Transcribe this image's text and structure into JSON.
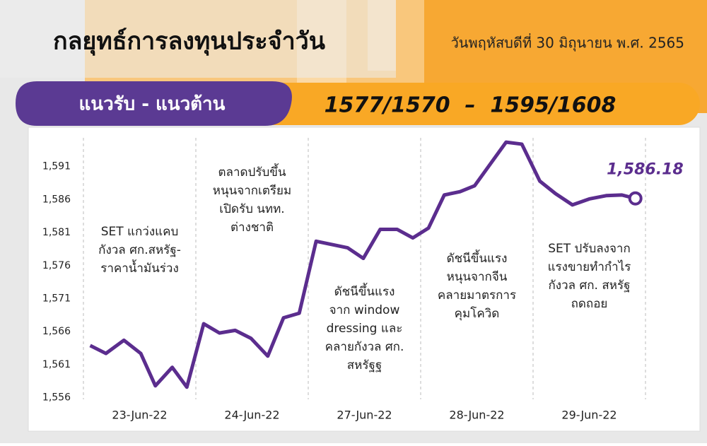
{
  "header": {
    "title": "กลยุทธ์การลงทุนประจำวัน",
    "date": "วันพฤหัสบดีที่ 30 มิถุนายน พ.ศ. 2565"
  },
  "banner": {
    "label": "แนวรับ - แนวต้าน",
    "levels": "1577/1570  –  1595/1608"
  },
  "chart_data": {
    "type": "line",
    "xlim": [
      0,
      5
    ],
    "xticks": [
      {
        "value": 0.5,
        "label": "23-Jun-22"
      },
      {
        "value": 1.5,
        "label": "24-Jun-22"
      },
      {
        "value": 2.5,
        "label": "27-Jun-22"
      },
      {
        "value": 3.5,
        "label": "28-Jun-22"
      },
      {
        "value": 4.5,
        "label": "29-Jun-22"
      }
    ],
    "ylim": [
      1555,
      1596
    ],
    "yticks": [
      {
        "value": 1556,
        "label": "1,556"
      },
      {
        "value": 1561,
        "label": "1,561"
      },
      {
        "value": 1566,
        "label": "1,566"
      },
      {
        "value": 1571,
        "label": "1,571"
      },
      {
        "value": 1576,
        "label": "1,576"
      },
      {
        "value": 1581,
        "label": "1,581"
      },
      {
        "value": 1586,
        "label": "1,586"
      },
      {
        "value": 1591,
        "label": "1,591"
      }
    ],
    "grid": false,
    "series": [
      {
        "color": "#5b2d8e",
        "x": [
          0.06,
          0.2,
          0.36,
          0.51,
          0.64,
          0.79,
          0.92,
          1.07,
          1.21,
          1.35,
          1.49,
          1.64,
          1.78,
          1.92,
          2.07,
          2.21,
          2.35,
          2.49,
          2.64,
          2.79,
          2.93,
          3.07,
          3.21,
          3.35,
          3.48,
          3.62,
          3.76,
          3.9,
          4.06,
          4.2,
          4.35,
          4.5,
          4.65,
          4.79,
          4.91
        ],
        "values": [
          1563.9,
          1562.7,
          1564.7,
          1562.7,
          1557.8,
          1560.6,
          1557.6,
          1567.2,
          1565.8,
          1566.2,
          1565.0,
          1562.3,
          1568.1,
          1568.8,
          1579.7,
          1579.2,
          1578.7,
          1577.1,
          1581.5,
          1581.5,
          1580.2,
          1581.7,
          1586.7,
          1587.2,
          1588.1,
          1591.4,
          1594.7,
          1594.4,
          1588.8,
          1586.9,
          1585.2,
          1586.1,
          1586.6,
          1586.7,
          1586.18
        ],
        "value_labels": [
          null,
          null,
          null,
          null,
          null,
          null,
          null,
          null,
          null,
          null,
          null,
          null,
          null,
          null,
          null,
          null,
          null,
          null,
          null,
          null,
          null,
          null,
          null,
          null,
          null,
          null,
          null,
          null,
          null,
          null,
          null,
          null,
          null,
          null,
          "1,586.18"
        ]
      }
    ],
    "annotations": [
      [
        "SET แกว่งแคบ",
        "กังวล ศก.สหรัฐ-",
        "ราคาน้ำมันร่วง"
      ],
      [
        "ตลาดปรับขึ้น",
        "หนุนจากเตรียม",
        "เปิดรับ นทท.",
        "ต่างชาติ"
      ],
      [
        "ดัชนีขึ้นแรง",
        "จาก window",
        "dressing และ",
        "คลายกังวล ศก.",
        "สหรัฐฐ"
      ],
      [
        "ดัชนีขึ้นแรง",
        "หนุนจากจีน",
        "คลายมาตรการ",
        "คุมโควิด"
      ],
      [
        "SET ปรับลงจาก",
        "แรงขายทำกำไร",
        "กังวล ศก. สหรัฐ",
        "ถดถอย"
      ]
    ]
  }
}
